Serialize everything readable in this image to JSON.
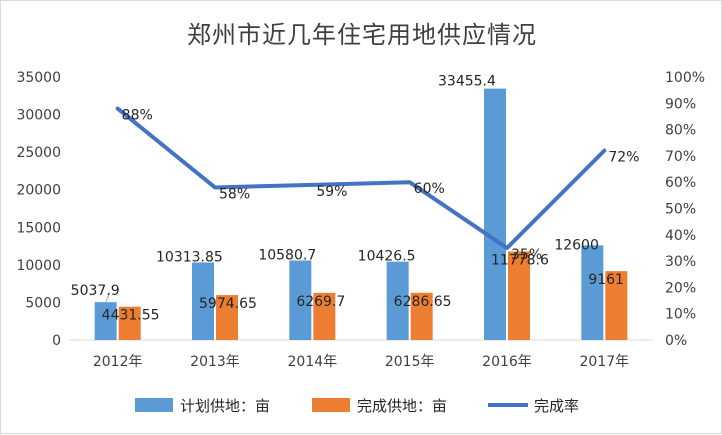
{
  "chart_data": {
    "type": "bar",
    "title": "郑州市近几年住宅用地供应情况",
    "categories": [
      "2012年",
      "2013年",
      "2014年",
      "2015年",
      "2016年",
      "2017年"
    ],
    "series": [
      {
        "name": "计划供地：亩",
        "type": "bar",
        "axis": "left",
        "color": "#5b9bd5",
        "values": [
          5037.9,
          10313.85,
          10580.7,
          10426.5,
          33455.4,
          12600
        ],
        "labels": [
          "5037.9",
          "10313.85",
          "10580.7",
          "10426.5",
          "33455.4",
          "12600"
        ]
      },
      {
        "name": "完成供地：亩",
        "type": "bar",
        "axis": "right-of-pair",
        "color": "#ed7d31",
        "values": [
          4431.55,
          5974.65,
          6269.7,
          6286.65,
          11778.6,
          9161
        ],
        "labels": [
          "4431.55",
          "5974.65",
          "6269.7",
          "6286.65",
          "11778.6",
          "9161"
        ]
      },
      {
        "name": "完成率",
        "type": "line",
        "axis": "right",
        "color": "#4472c4",
        "values": [
          0.88,
          0.58,
          0.59,
          0.6,
          0.35,
          0.72
        ],
        "labels": [
          "88%",
          "58%",
          "59%",
          "60%",
          "35%",
          "72%"
        ]
      }
    ],
    "y_left": {
      "min": 0,
      "max": 35000,
      "ticks": [
        "0",
        "5000",
        "10000",
        "15000",
        "20000",
        "25000",
        "30000",
        "35000"
      ]
    },
    "y_right": {
      "min": 0,
      "max": 1,
      "ticks": [
        "0%",
        "10%",
        "20%",
        "30%",
        "40%",
        "50%",
        "60%",
        "70%",
        "80%",
        "90%",
        "100%"
      ]
    },
    "grid": false,
    "legend_position": "bottom"
  }
}
